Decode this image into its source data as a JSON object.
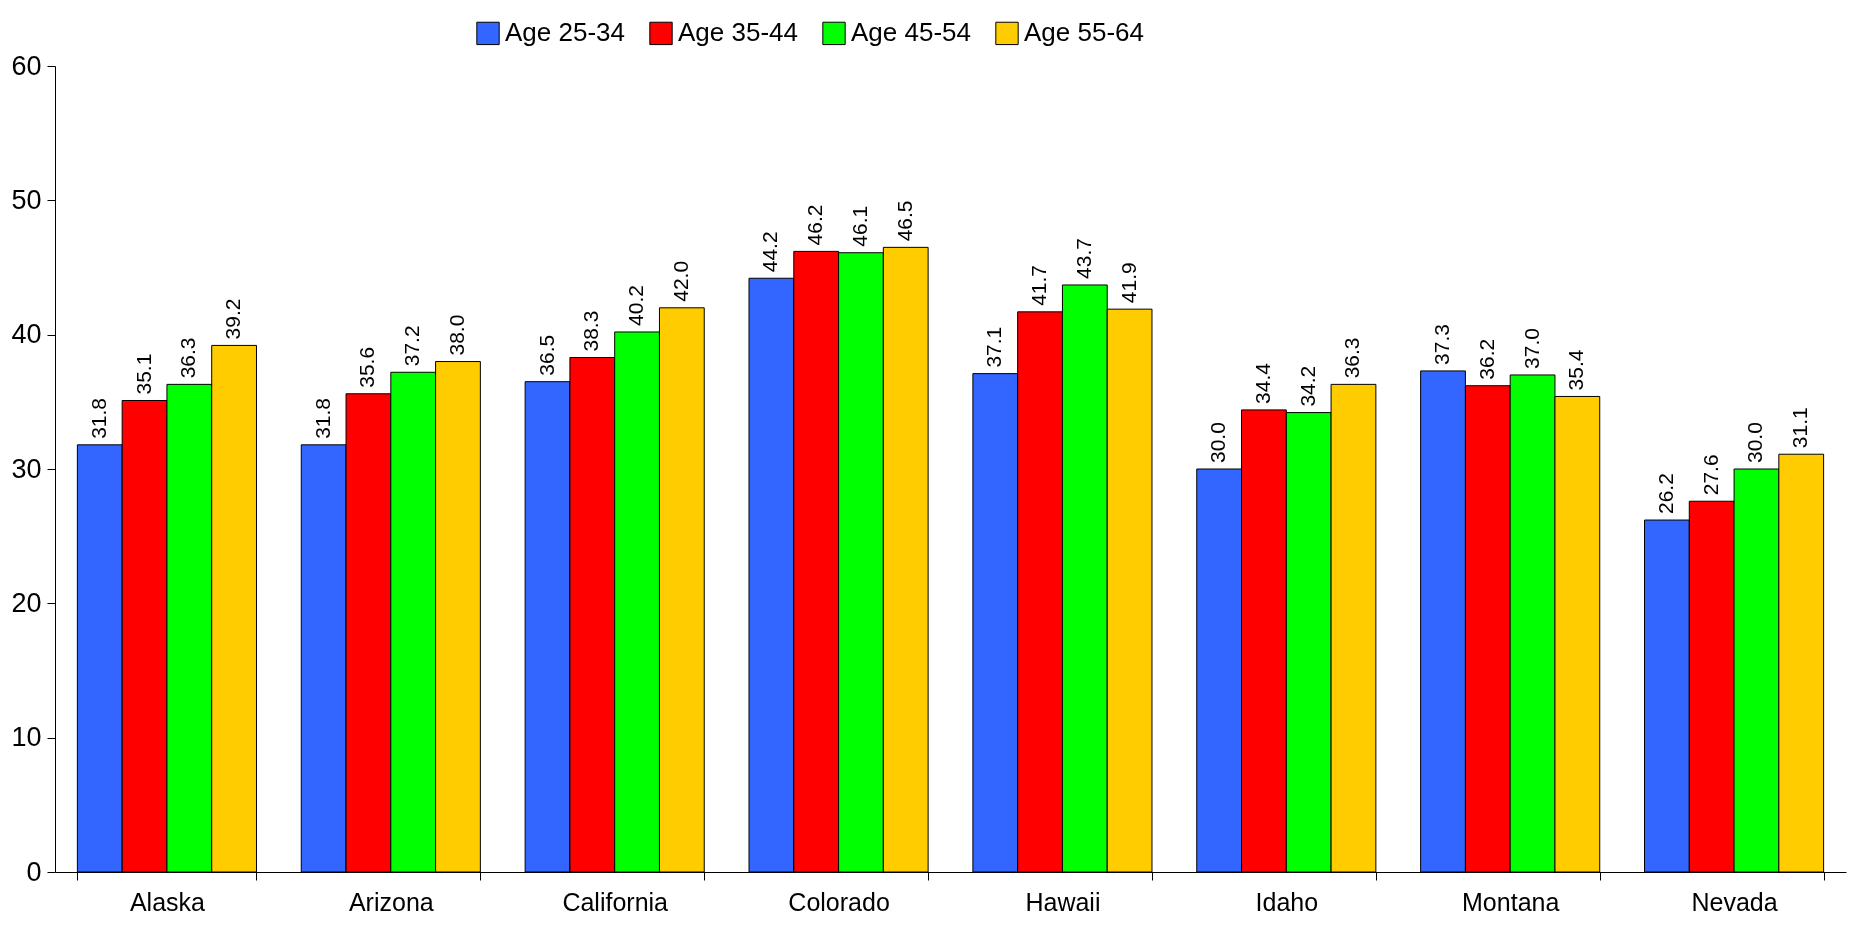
{
  "chart_data": {
    "type": "bar",
    "categories": [
      "Alaska",
      "Arizona",
      "California",
      "Colorado",
      "Hawaii",
      "Idaho",
      "Montana",
      "Nevada"
    ],
    "series": [
      {
        "name": "Age 25-34",
        "color": "#3366ff",
        "values": [
          31.8,
          31.8,
          36.5,
          44.2,
          37.1,
          30.0,
          37.3,
          26.2
        ],
        "value_labels": [
          "31.8",
          "31.8",
          "36.5",
          "44.2",
          "37.1",
          "30.0",
          "37.3",
          "26.2"
        ]
      },
      {
        "name": "Age 35-44",
        "color": "#ff0000",
        "values": [
          35.1,
          35.6,
          38.3,
          46.2,
          41.7,
          34.4,
          36.2,
          27.6
        ],
        "value_labels": [
          "35.1",
          "35.6",
          "38.3",
          "46.2",
          "41.7",
          "34.4",
          "36.2",
          "27.6"
        ]
      },
      {
        "name": "Age 45-54",
        "color": "#00ff00",
        "values": [
          36.3,
          37.2,
          40.2,
          46.1,
          43.7,
          34.2,
          37.0,
          30.0
        ],
        "value_labels": [
          "36.3",
          "37.2",
          "40.2",
          "46.1",
          "43.7",
          "34.2",
          "37.0",
          "30.0"
        ]
      },
      {
        "name": "Age 55-64",
        "color": "#ffcc00",
        "values": [
          39.2,
          38.0,
          42.0,
          46.5,
          41.9,
          36.3,
          35.4,
          31.1
        ],
        "value_labels": [
          "39.2",
          "38.0",
          "42.0",
          "46.5",
          "41.9",
          "36.3",
          "35.4",
          "31.1"
        ]
      }
    ],
    "ylim": [
      0,
      60
    ],
    "yticks": [
      0,
      10,
      20,
      30,
      40,
      50,
      60
    ],
    "legend": "top"
  }
}
